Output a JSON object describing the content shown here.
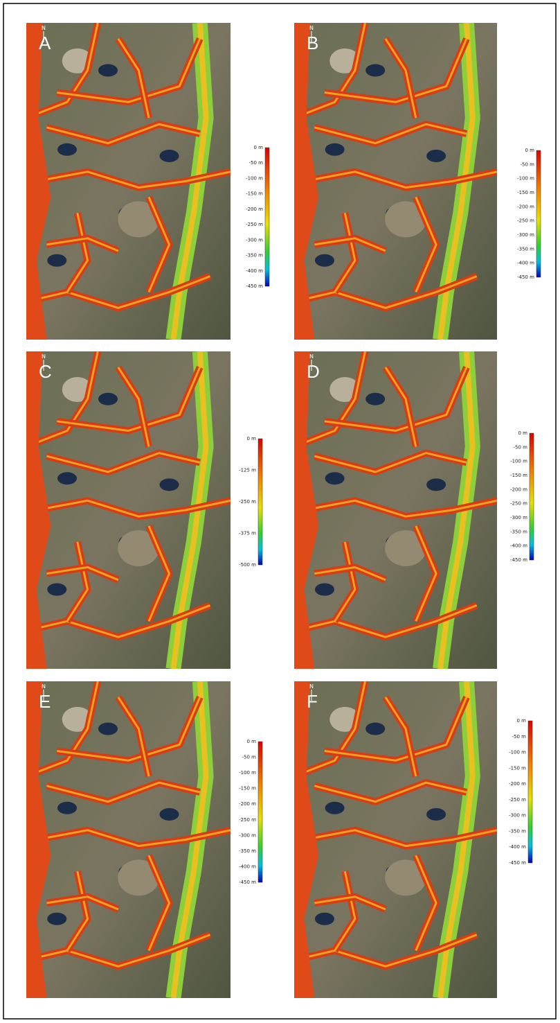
{
  "panels": [
    {
      "label": "A",
      "north": "N",
      "colorbar": {
        "ticks": [
          "0 m",
          "-50 m",
          "-100 m",
          "-150 m",
          "-200 m",
          "-250 m",
          "-300 m",
          "-350 m",
          "-400 m",
          "-450 m"
        ]
      }
    },
    {
      "label": "B",
      "north": "N",
      "colorbar": {
        "ticks": [
          "0 m",
          "-50 m",
          "-100 m",
          "-150 m",
          "-200 m",
          "-250 m",
          "-300 m",
          "-350 m",
          "-400 m",
          "-450 m"
        ]
      }
    },
    {
      "label": "C",
      "north": "N",
      "colorbar": {
        "ticks": [
          "0 m",
          "-125 m",
          "-250 m",
          "-375 m",
          "-500 m"
        ]
      }
    },
    {
      "label": "D",
      "north": "N",
      "colorbar": {
        "ticks": [
          "0 m",
          "-50 m",
          "-100 m",
          "-150 m",
          "-200 m",
          "-250 m",
          "-300 m",
          "-350 m",
          "-400 m",
          "-450 m"
        ]
      }
    },
    {
      "label": "E",
      "north": "N",
      "colorbar": {
        "ticks": [
          "0 m",
          "-50 m",
          "-100 m",
          "-150 m",
          "-200 m",
          "-250 m",
          "-300 m",
          "-350 m",
          "-400 m",
          "-450 m"
        ]
      }
    },
    {
      "label": "F",
      "north": "N",
      "colorbar": {
        "ticks": [
          "0 m",
          "-50 m",
          "-100 m",
          "-150 m",
          "-200 m",
          "-250 m",
          "-300 m",
          "-350 m",
          "-400 m",
          "-450 m"
        ]
      }
    }
  ]
}
